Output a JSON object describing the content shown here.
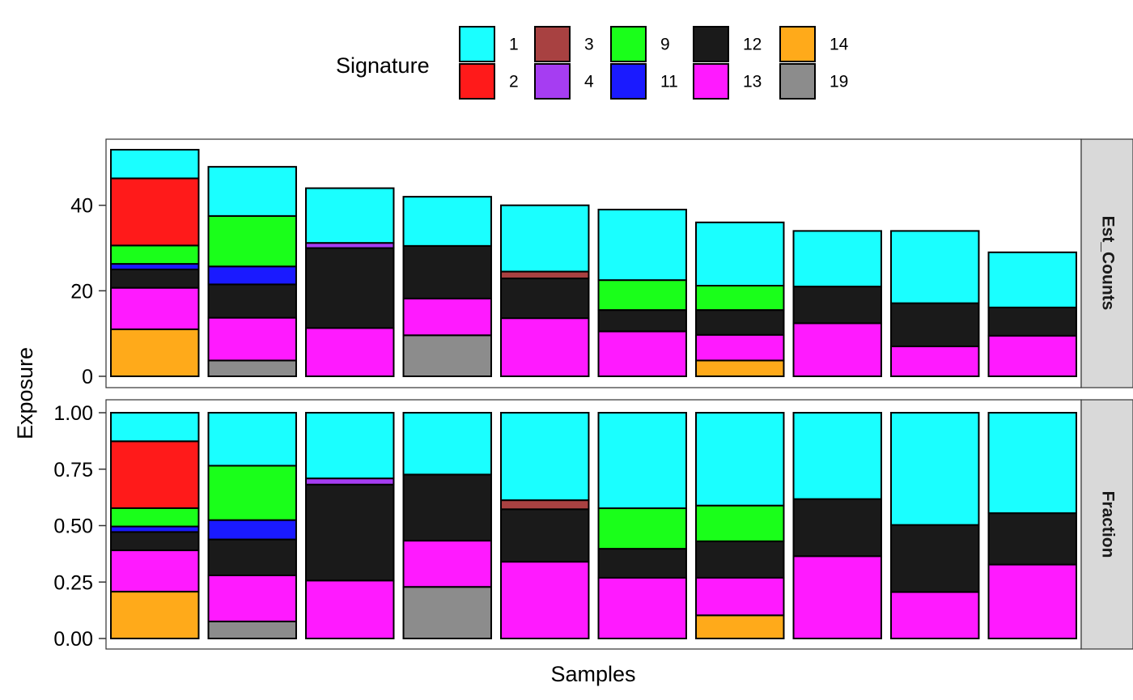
{
  "chart_data": {
    "type": "bar",
    "stacked": true,
    "facets": [
      "Est_Counts",
      "Fraction"
    ],
    "xlabel": "Samples",
    "ylabel": "Exposure",
    "legend": {
      "title": "Signature",
      "position": "top",
      "entries": [
        {
          "name": "1",
          "color": "#1AFFFF"
        },
        {
          "name": "2",
          "color": "#FF1A1A"
        },
        {
          "name": "3",
          "color": "#A84141"
        },
        {
          "name": "4",
          "color": "#A63DF2"
        },
        {
          "name": "9",
          "color": "#1AFF1A"
        },
        {
          "name": "11",
          "color": "#1A1AFF"
        },
        {
          "name": "12",
          "color": "#1A1A1A"
        },
        {
          "name": "13",
          "color": "#FF1AFF"
        },
        {
          "name": "14",
          "color": "#FFAA1A"
        },
        {
          "name": "19",
          "color": "#8C8C8C"
        }
      ]
    },
    "stack_order_bottom_to_top": [
      "19",
      "14",
      "13",
      "12",
      "11",
      "4",
      "9",
      "3",
      "2",
      "1"
    ],
    "samples": [
      {
        "counts": {
          "14": 11.0,
          "13": 9.7,
          "12": 4.3,
          "11": 1.3,
          "9": 4.3,
          "2": 15.7,
          "1": 6.7
        }
      },
      {
        "counts": {
          "19": 3.7,
          "13": 10.0,
          "12": 7.8,
          "11": 4.2,
          "9": 11.8,
          "1": 11.5
        }
      },
      {
        "counts": {
          "13": 11.3,
          "12": 18.7,
          "4": 1.2,
          "1": 12.8
        }
      },
      {
        "counts": {
          "19": 9.6,
          "13": 8.6,
          "12": 12.3,
          "1": 11.5
        }
      },
      {
        "counts": {
          "13": 13.6,
          "12": 9.3,
          "3": 1.6,
          "1": 15.5
        }
      },
      {
        "counts": {
          "13": 10.5,
          "12": 5.0,
          "9": 7.0,
          "1": 16.5
        }
      },
      {
        "counts": {
          "14": 3.7,
          "13": 6.0,
          "12": 5.8,
          "9": 5.7,
          "1": 14.8
        }
      },
      {
        "counts": {
          "13": 12.4,
          "12": 8.6,
          "1": 13.0
        }
      },
      {
        "counts": {
          "13": 7.0,
          "12": 10.1,
          "1": 16.9
        }
      },
      {
        "counts": {
          "13": 9.5,
          "12": 6.6,
          "1": 12.9
        }
      }
    ],
    "panels": [
      {
        "facet": "Est_Counts",
        "ylim": [
          0,
          53.5
        ],
        "ticks": [
          0,
          20,
          40
        ],
        "tick_labels": [
          "0",
          "20",
          "40"
        ]
      },
      {
        "facet": "Fraction",
        "ylim": [
          0,
          1.05
        ],
        "ticks": [
          0,
          0.25,
          0.5,
          0.75,
          1.0
        ],
        "tick_labels": [
          "0.00",
          "0.25",
          "0.50",
          "0.75",
          "1.00"
        ]
      }
    ],
    "grid": false
  }
}
